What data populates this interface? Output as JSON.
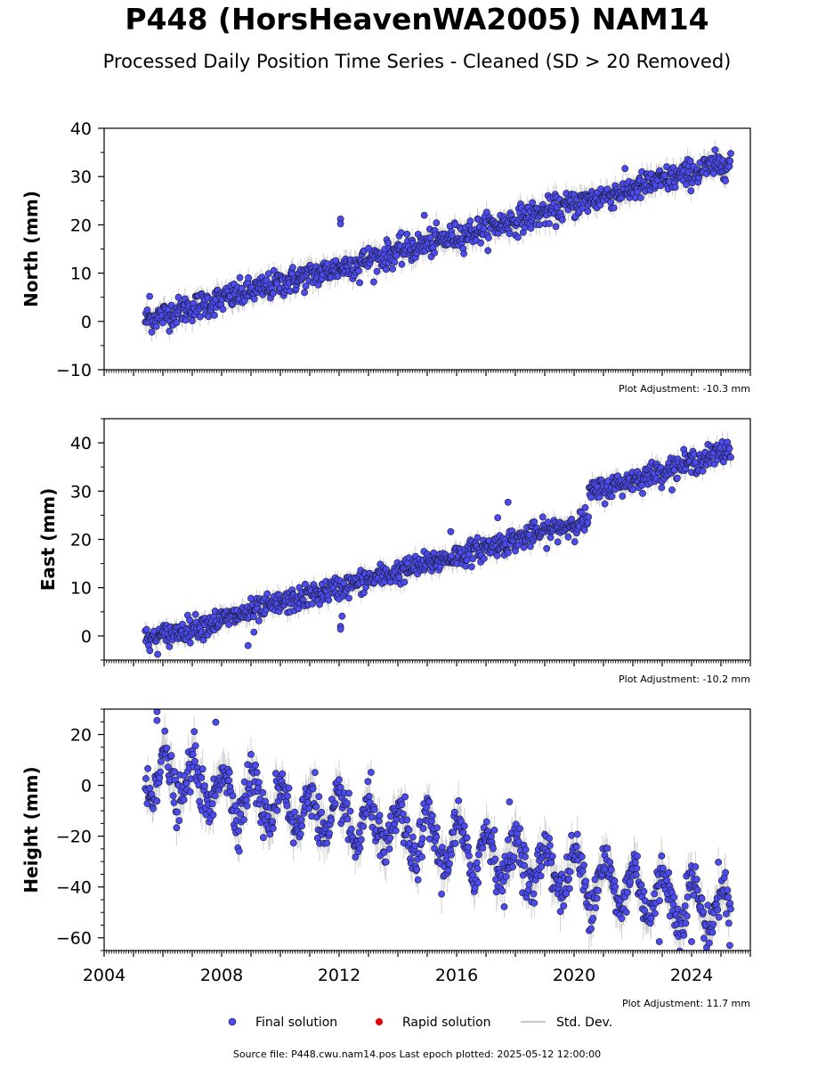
{
  "title": "P448 (HorsHeavenWA2005) NAM14",
  "subtitle": "Processed Daily Position Time Series - Cleaned (SD > 20 Removed)",
  "source_line": "Source file: P448.cwu.nam14.pos  Last epoch plotted: 2025-05-12 12:00:00",
  "legend": {
    "final": "Final solution",
    "rapid": "Rapid solution",
    "stddev": "Std. Dev."
  },
  "colors": {
    "final_fill": "#4b4bf0",
    "final_edge": "#1a1a2e",
    "rapid": "#e00000",
    "stddev": "#c8c8c8"
  },
  "chart_data": [
    {
      "type": "scatter",
      "name": "north",
      "ylabel": "North (mm)",
      "ylim": [
        -10,
        40
      ],
      "yticks": [
        -10,
        0,
        10,
        20,
        30,
        40
      ],
      "ytick_labels": [
        "−10",
        "0",
        "10",
        "20",
        "30",
        "40"
      ],
      "xlim": [
        2004,
        2026
      ],
      "adjustment": "Plot Adjustment: -10.3 mm",
      "trend": {
        "x": [
          2005.4,
          2025.35
        ],
        "y": [
          0.3,
          33.0
        ]
      },
      "scatter_sd": 1.4,
      "outliers": [
        {
          "x": 2005.55,
          "y": 5.2
        },
        {
          "x": 2012.05,
          "y": 21.2
        },
        {
          "x": 2012.05,
          "y": 20.2
        },
        {
          "x": 2014.9,
          "y": 22.0
        },
        {
          "x": 2012.7,
          "y": 8.0
        }
      ]
    },
    {
      "type": "scatter",
      "name": "east",
      "ylabel": "East (mm)",
      "ylim": [
        -5,
        45
      ],
      "yticks": [
        0,
        10,
        20,
        30,
        40
      ],
      "ytick_labels": [
        "0",
        "10",
        "20",
        "30",
        "40"
      ],
      "xlim": [
        2004,
        2026
      ],
      "adjustment": "Plot Adjustment: -10.2 mm",
      "trend": {
        "x": [
          2005.4,
          2020.45
        ],
        "y": [
          -1.0,
          24.0
        ]
      },
      "trend2": {
        "x": [
          2020.5,
          2025.35
        ],
        "y": [
          29.5,
          38.5
        ]
      },
      "scatter_sd": 1.2,
      "outliers": [
        {
          "x": 2015.8,
          "y": 21.6
        },
        {
          "x": 2017.4,
          "y": 24.5
        },
        {
          "x": 2017.75,
          "y": 27.7
        },
        {
          "x": 2012.1,
          "y": 4.1
        },
        {
          "x": 2012.05,
          "y": 2.0
        },
        {
          "x": 2012.05,
          "y": 1.4
        },
        {
          "x": 2008.9,
          "y": -2.0
        },
        {
          "x": 2009.1,
          "y": 0.8
        }
      ]
    },
    {
      "type": "scatter",
      "name": "height",
      "ylabel": "Height (mm)",
      "ylim": [
        -65,
        30
      ],
      "yticks": [
        -60,
        -40,
        -20,
        0,
        20
      ],
      "ytick_labels": [
        "−60",
        "−40",
        "−20",
        "0",
        "20"
      ],
      "xlim": [
        2004,
        2026
      ],
      "xticks": [
        2004,
        2008,
        2012,
        2016,
        2020,
        2024
      ],
      "xtick_labels": [
        "2004",
        "2008",
        "2012",
        "2016",
        "2020",
        "2024"
      ],
      "adjustment": "Plot Adjustment: 11.7 mm",
      "trend": {
        "x": [
          2005.4,
          2025.35
        ],
        "y": [
          5.0,
          -50.0
        ]
      },
      "seasonal_amplitude": 9,
      "scatter_sd": 4.5,
      "outliers": [
        {
          "x": 2005.8,
          "y": 29.0
        },
        {
          "x": 2005.8,
          "y": 25.5
        },
        {
          "x": 2007.8,
          "y": 24.8
        },
        {
          "x": 2022.9,
          "y": -61.5
        },
        {
          "x": 2024.0,
          "y": -61.5
        },
        {
          "x": 2025.3,
          "y": -63.0
        },
        {
          "x": 2017.8,
          "y": -6.5
        }
      ]
    }
  ]
}
